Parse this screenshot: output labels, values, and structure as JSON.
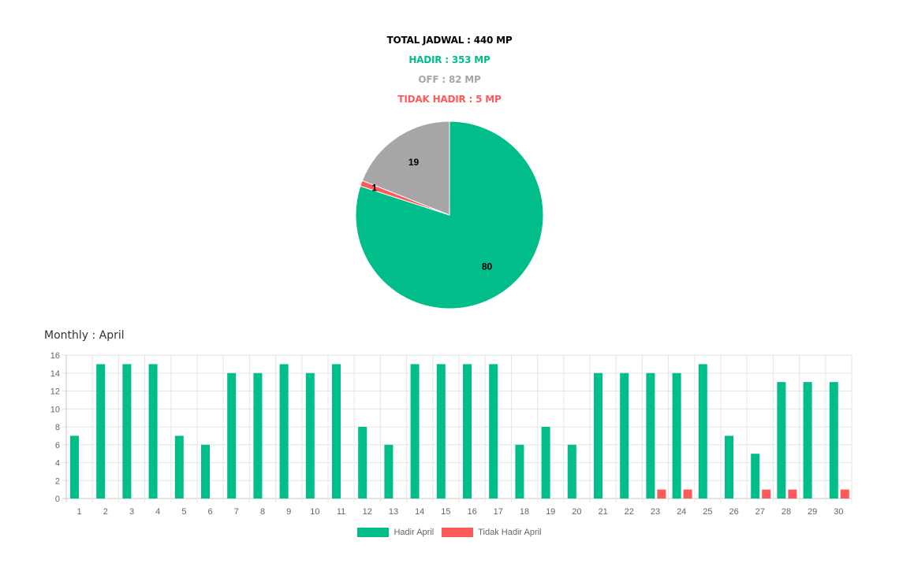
{
  "summary": {
    "total": "TOTAL JADWAL : 440 MP",
    "hadir": "HADIR : 353 MP",
    "off": "OFF : 82 MP",
    "tidak_hadir": "TIDAK HADIR : 5 MP"
  },
  "colors": {
    "hadir": "#00bd89",
    "tidak_hadir": "#ff5a5a",
    "off": "#a6a6a6",
    "total": "#000000",
    "grid": "#e6e6e6",
    "tick": "#666666"
  },
  "monthly_title": "Monthly : April",
  "chart_data": [
    {
      "type": "pie",
      "slices": [
        {
          "label": "80",
          "value": 80,
          "color": "#00bd89"
        },
        {
          "label": "1",
          "value": 1,
          "color": "#ff5a5a"
        },
        {
          "label": "19",
          "value": 19,
          "color": "#a6a6a6"
        }
      ]
    },
    {
      "type": "bar",
      "categories": [
        "1",
        "2",
        "3",
        "4",
        "5",
        "6",
        "7",
        "8",
        "9",
        "10",
        "11",
        "12",
        "13",
        "14",
        "15",
        "16",
        "17",
        "18",
        "19",
        "20",
        "21",
        "22",
        "23",
        "24",
        "25",
        "26",
        "27",
        "28",
        "29",
        "30"
      ],
      "series": [
        {
          "name": "Hadir April",
          "color": "#00bd89",
          "values": [
            7,
            15,
            15,
            15,
            7,
            6,
            14,
            14,
            15,
            14,
            15,
            8,
            6,
            15,
            15,
            15,
            15,
            6,
            8,
            6,
            14,
            14,
            14,
            14,
            15,
            7,
            5,
            13,
            13,
            13
          ]
        },
        {
          "name": "Tidak Hadir April",
          "color": "#ff5a5a",
          "values": [
            0,
            0,
            0,
            0,
            0,
            0,
            0,
            0,
            0,
            0,
            0,
            0,
            0,
            0,
            0,
            0,
            0,
            0,
            0,
            0,
            0,
            0,
            1,
            1,
            0,
            0,
            1,
            1,
            0,
            1
          ]
        }
      ],
      "ylim": [
        0,
        16
      ],
      "yticks": [
        "0",
        "2",
        "4",
        "6",
        "8",
        "10",
        "12",
        "14",
        "16"
      ],
      "grid": true,
      "legend_position": "bottom"
    }
  ]
}
